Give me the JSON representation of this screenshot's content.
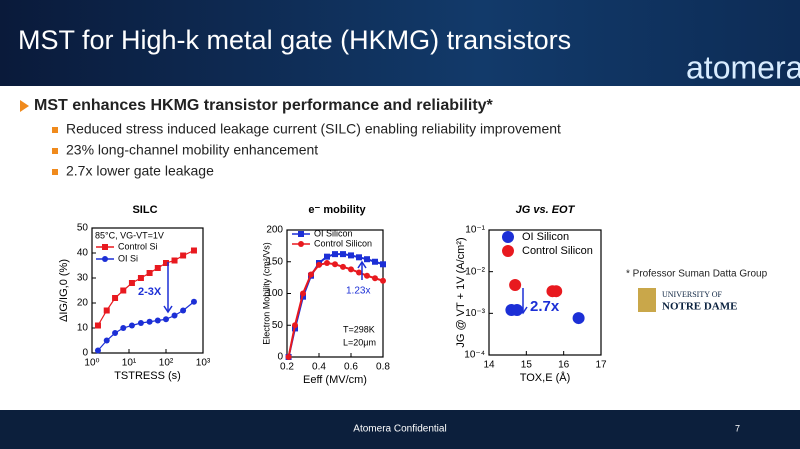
{
  "header": {
    "title": "MST for High-k metal gate (HKMG) transistors",
    "logo": "atomera"
  },
  "headline": "MST enhances HKMG transistor performance and reliability*",
  "bullets": [
    "Reduced stress induced leakage current (SILC) enabling reliability improvement",
    "23% long-channel mobility enhancement",
    "2.7x lower gate leakage"
  ],
  "affiliation": {
    "note": "* Professor Suman Datta Group",
    "university_line1": "UNIVERSITY OF",
    "university_line2": "NOTRE DAME"
  },
  "footer": {
    "text": "Atomera Confidential",
    "page": "7"
  },
  "chart_data": [
    {
      "type": "line",
      "title": "SILC",
      "xlabel": "TSTRESS (s)",
      "ylabel": "ΔIG/IG,0 (%)",
      "xlog": true,
      "xlim": [
        1,
        1000
      ],
      "ylim": [
        0,
        50
      ],
      "xticks": [
        {
          "value": 1,
          "label": "10⁰"
        },
        {
          "value": 10,
          "label": "10¹"
        },
        {
          "value": 100,
          "label": "10²"
        },
        {
          "value": 1000,
          "label": "10³"
        }
      ],
      "yticks": [
        0,
        10,
        20,
        30,
        40,
        50
      ],
      "annotations": [
        "85°C, VG-VT=1V",
        "2-3X"
      ],
      "x": [
        1.45,
        2.5,
        4.2,
        7,
        12,
        21,
        36,
        60,
        100,
        170,
        290,
        570
      ],
      "series": [
        {
          "name": "Control Si",
          "color": "#e8191f",
          "marker": "square",
          "values": [
            11,
            17,
            22,
            25,
            28,
            30,
            32,
            34,
            36,
            37,
            39,
            41
          ]
        },
        {
          "name": "OI Si",
          "color": "#1c2fd6",
          "marker": "circle",
          "values": [
            1,
            5,
            8,
            10,
            11,
            12,
            12.5,
            13,
            13.5,
            15,
            17,
            20.5
          ]
        }
      ]
    },
    {
      "type": "line",
      "title": "e⁻ mobility",
      "xlabel": "Eeff (MV/cm)",
      "ylabel": "Electron Mobility (cm²/Vs)",
      "xlim": [
        0.2,
        0.8
      ],
      "ylim": [
        0,
        200
      ],
      "xticks": [
        0.2,
        0.4,
        0.6,
        0.8
      ],
      "yticks": [
        0,
        50,
        100,
        150,
        200
      ],
      "annotations": [
        "1.23x",
        "T=298K",
        "L=20μm"
      ],
      "x": [
        0.21,
        0.25,
        0.3,
        0.35,
        0.4,
        0.45,
        0.5,
        0.55,
        0.6,
        0.65,
        0.7,
        0.75,
        0.8
      ],
      "series": [
        {
          "name": "OI Silicon",
          "color": "#1c2fd6",
          "marker": "square",
          "values": [
            0,
            45,
            95,
            128,
            148,
            158,
            162,
            162,
            160,
            157,
            154,
            150,
            146
          ]
        },
        {
          "name": "Control Silicon",
          "color": "#e8191f",
          "marker": "circle",
          "values": [
            0,
            50,
            100,
            130,
            145,
            148,
            146,
            142,
            138,
            133,
            128,
            124,
            120
          ]
        }
      ]
    },
    {
      "type": "scatter",
      "title": "JG vs. EOT",
      "xlabel": "TOX,E (Å)",
      "ylabel": "JG @ VT + 1V (A/cm²)",
      "ylog": true,
      "xlim": [
        14,
        17
      ],
      "ylim": [
        0.0001,
        0.1
      ],
      "xticks": [
        14,
        15,
        16,
        17
      ],
      "yticks": [
        {
          "value": 0.0001,
          "label": "10⁻⁴"
        },
        {
          "value": 0.001,
          "label": "10⁻³"
        },
        {
          "value": 0.01,
          "label": "10⁻²"
        },
        {
          "value": 0.1,
          "label": "10⁻¹"
        }
      ],
      "annotations": [
        "2.7x"
      ],
      "series": [
        {
          "name": "OI Silicon",
          "color": "#1c2fd6",
          "marker": "circle",
          "x": [
            14.6,
            14.75,
            16.4
          ],
          "values": [
            0.0012,
            0.0012,
            0.00077
          ]
        },
        {
          "name": "Control Silicon",
          "color": "#e8191f",
          "marker": "circle",
          "x": [
            14.7,
            15.7,
            15.8
          ],
          "values": [
            0.0048,
            0.0034,
            0.0034
          ]
        }
      ]
    }
  ]
}
